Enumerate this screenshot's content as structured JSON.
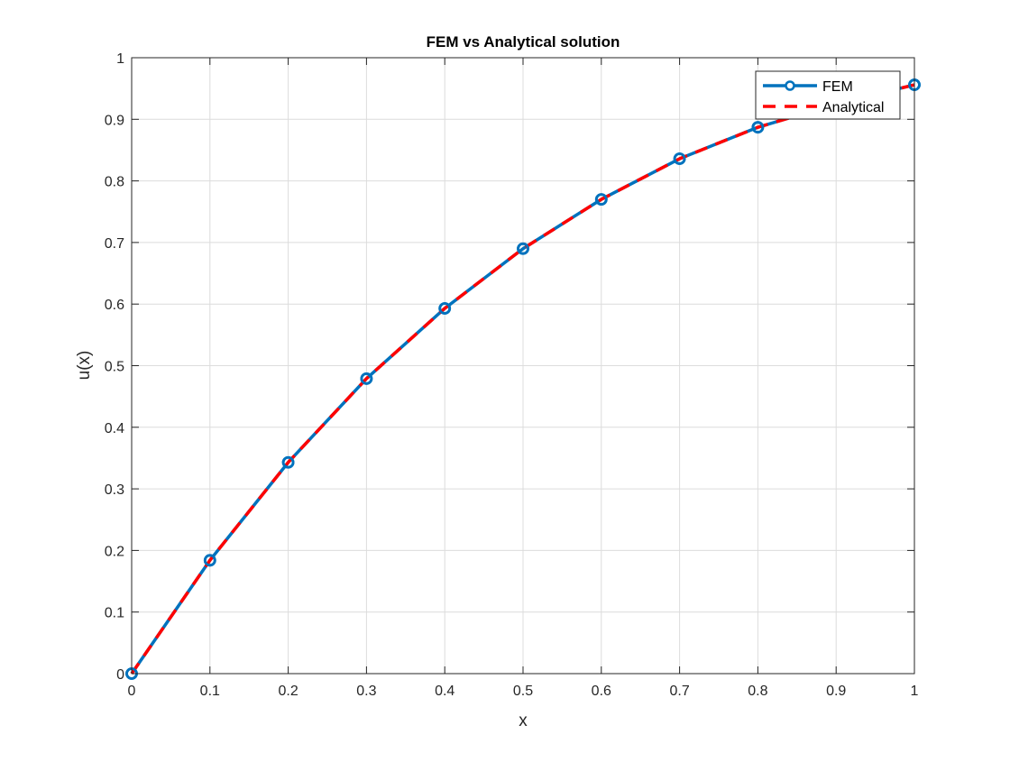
{
  "chart_data": {
    "type": "line",
    "title": "FEM vs Analytical solution",
    "xlabel": "x",
    "ylabel": "u(x)",
    "xlim": [
      0,
      1
    ],
    "ylim": [
      0,
      1
    ],
    "xticks": [
      0,
      0.1,
      0.2,
      0.3,
      0.4,
      0.5,
      0.6,
      0.7,
      0.8,
      0.9,
      1
    ],
    "xtick_labels": [
      "0",
      "0.1",
      "0.2",
      "0.3",
      "0.4",
      "0.5",
      "0.6",
      "0.7",
      "0.8",
      "0.9",
      "1"
    ],
    "yticks": [
      0,
      0.1,
      0.2,
      0.3,
      0.4,
      0.5,
      0.6,
      0.7,
      0.8,
      0.9,
      1
    ],
    "ytick_labels": [
      "0",
      "0.1",
      "0.2",
      "0.3",
      "0.4",
      "0.5",
      "0.6",
      "0.7",
      "0.8",
      "0.9",
      "1"
    ],
    "grid": true,
    "legend_position": "top-right",
    "x": [
      0,
      0.1,
      0.2,
      0.3,
      0.4,
      0.5,
      0.6,
      0.7,
      0.8,
      0.9,
      1.0
    ],
    "series": [
      {
        "name": "FEM",
        "color": "#0072BD",
        "style": "solid",
        "marker": "circle",
        "values": [
          0,
          0.184,
          0.343,
          0.479,
          0.593,
          0.69,
          0.77,
          0.836,
          0.887,
          0.925,
          0.956
        ]
      },
      {
        "name": "Analytical",
        "color": "#FF0000",
        "style": "dashed",
        "marker": "none",
        "values": [
          0,
          0.184,
          0.343,
          0.479,
          0.593,
          0.69,
          0.77,
          0.836,
          0.887,
          0.925,
          0.956
        ]
      }
    ]
  }
}
